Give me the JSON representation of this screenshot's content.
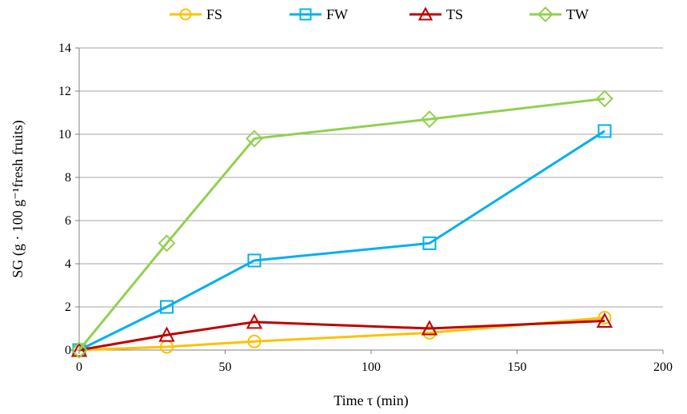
{
  "chart_data": {
    "type": "line",
    "title": "",
    "xlabel": "Time τ (min)",
    "ylabel": "SG (g · 100 g⁻¹fresh fruits)",
    "xlim": [
      0,
      200
    ],
    "ylim": [
      0,
      14
    ],
    "xticks": [
      0,
      50,
      100,
      150,
      200
    ],
    "yticks": [
      0,
      2,
      4,
      6,
      8,
      10,
      12,
      14
    ],
    "grid": "horizontal",
    "legend_position": "top",
    "x": [
      0,
      30,
      60,
      120,
      180
    ],
    "series": [
      {
        "name": "FS",
        "color": "#FFC000",
        "marker": "circle",
        "values": [
          0,
          0.15,
          0.4,
          0.8,
          1.5
        ]
      },
      {
        "name": "FW",
        "color": "#00B0F0",
        "marker": "square",
        "values": [
          0,
          2.0,
          4.15,
          4.95,
          10.15
        ]
      },
      {
        "name": "TS",
        "color": "#C00000",
        "marker": "triangle",
        "values": [
          0,
          0.7,
          1.3,
          1.0,
          1.35
        ]
      },
      {
        "name": "TW",
        "color": "#92D050",
        "marker": "diamond",
        "values": [
          0,
          4.95,
          9.8,
          10.7,
          11.65
        ]
      }
    ]
  }
}
